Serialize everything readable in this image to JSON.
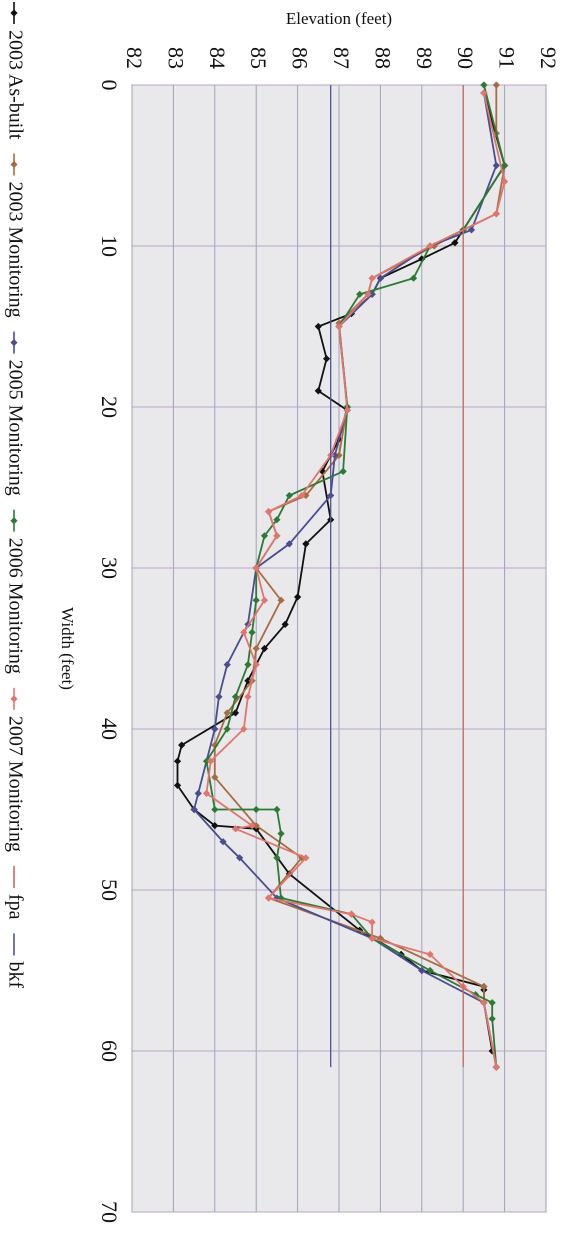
{
  "chart_data": {
    "type": "line",
    "title": "",
    "xlabel": "Width (feet)",
    "ylabel": "Elevation (feet)",
    "xlim": [
      0,
      70
    ],
    "ylim": [
      82,
      92
    ],
    "x_ticks": [
      "0",
      "10",
      "20",
      "30",
      "40",
      "50",
      "60",
      "70"
    ],
    "y_ticks": [
      "82",
      "83",
      "84",
      "85",
      "86",
      "87",
      "88",
      "89",
      "90",
      "91",
      "92"
    ],
    "grid": true,
    "legend_position": "right",
    "series": [
      {
        "name": "2003 As-built",
        "color": "#111111",
        "marker": "diamond",
        "x": [
          0.5,
          5,
          9,
          9.8,
          10.8,
          12,
          13,
          14.2,
          15,
          17,
          19,
          20.2,
          22,
          24,
          27,
          28.5,
          31.8,
          33.5,
          35,
          37,
          39,
          41,
          42,
          43.5,
          45,
          46,
          46.2,
          49,
          52.5,
          54,
          55,
          56,
          56.2,
          57,
          60
        ],
        "y": [
          90.5,
          91,
          90,
          89.8,
          89,
          88,
          87.8,
          87.3,
          86.5,
          86.7,
          86.5,
          87.2,
          87,
          86.6,
          86.8,
          86.2,
          86,
          85.7,
          85.2,
          84.8,
          84.5,
          83.2,
          83.1,
          83.1,
          83.5,
          84,
          85,
          85.8,
          87.5,
          88.5,
          89,
          90.5,
          90.5,
          90.5,
          90.7
        ]
      },
      {
        "name": "2003 Monitoring",
        "color": "#a86c42",
        "marker": "diamond",
        "x": [
          0,
          3,
          5,
          8,
          9,
          10,
          12,
          13,
          14.8,
          20,
          23,
          25.5,
          26.5,
          28,
          30,
          32,
          35,
          37,
          39,
          41,
          43,
          46,
          48,
          50.5,
          53,
          56,
          57,
          61
        ],
        "y": [
          90.8,
          90.8,
          91,
          90.8,
          90,
          89.3,
          87.8,
          87.7,
          87,
          87.2,
          87,
          86.2,
          85.3,
          85.5,
          85,
          85.6,
          85,
          84.9,
          84.3,
          84,
          84,
          85,
          86.1,
          85.3,
          88,
          90.5,
          90.5,
          90.8
        ]
      },
      {
        "name": "2005 Monitoring",
        "color": "#4a4e90",
        "marker": "diamond",
        "x": [
          0.5,
          5,
          9,
          10,
          12,
          13,
          15,
          20,
          23,
          25.5,
          28.5,
          30,
          33.5,
          36,
          38,
          40,
          44,
          45,
          47,
          48,
          50.5,
          53,
          55,
          57,
          61
        ],
        "y": [
          90.5,
          90.8,
          90.2,
          89.2,
          88,
          87.8,
          87,
          87.2,
          86.9,
          86.8,
          85.8,
          85,
          84.8,
          84.3,
          84.1,
          84,
          83.6,
          83.5,
          84.2,
          84.6,
          85.5,
          87.8,
          89,
          90.5,
          90.8
        ]
      },
      {
        "name": "2006 Monitoring",
        "color": "#2d7a32",
        "marker": "diamond",
        "x": [
          0,
          5,
          9,
          10,
          12,
          13,
          15,
          20,
          24,
          25.5,
          27,
          28,
          30,
          32,
          34,
          36,
          38,
          40,
          42,
          45,
          45,
          45,
          46.5,
          48,
          50.5,
          51.5,
          53,
          55,
          56.5,
          57,
          58,
          61
        ],
        "y": [
          90.5,
          91,
          90,
          89.2,
          88.8,
          87.5,
          87,
          87.2,
          87.1,
          85.8,
          85.5,
          85.2,
          85,
          85,
          84.9,
          84.8,
          84.5,
          84.3,
          83.8,
          84,
          85,
          85.5,
          85.6,
          85.5,
          85.6,
          87.3,
          87.8,
          89.2,
          90.3,
          90.7,
          90.7,
          90.8
        ]
      },
      {
        "name": "2007 Monitoring",
        "color": "#e0766e",
        "marker": "diamond",
        "x": [
          0.5,
          6,
          8,
          10,
          12,
          13,
          15,
          20.2,
          23,
          25.5,
          26.5,
          28,
          30,
          32,
          34,
          36,
          38,
          40,
          42,
          44,
          46,
          46.2,
          48,
          50.5,
          51.5,
          52,
          53,
          54,
          56,
          57,
          61
        ],
        "y": [
          90.5,
          91,
          90.8,
          89.2,
          87.8,
          87.7,
          87,
          87.2,
          86.8,
          86.1,
          85.3,
          85.5,
          85,
          85.2,
          84.7,
          85,
          84.8,
          84.7,
          83.9,
          83.8,
          84.9,
          84.5,
          86.2,
          85.3,
          87.3,
          87.8,
          87.8,
          89.2,
          90,
          90.5,
          90.8
        ]
      },
      {
        "name": "fpa",
        "color": "#c46a66",
        "marker": "none",
        "x": [
          0,
          61
        ],
        "y": [
          90,
          90
        ]
      },
      {
        "name": "bkf",
        "color": "#4f5396",
        "marker": "none",
        "x": [
          0,
          61
        ],
        "y": [
          86.8,
          86.8
        ]
      }
    ]
  }
}
